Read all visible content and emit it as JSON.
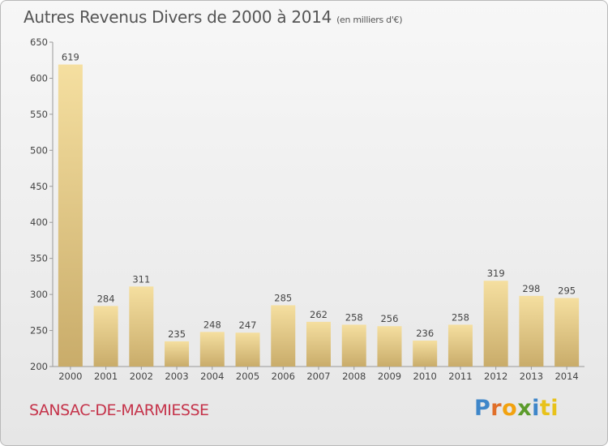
{
  "header": {
    "title": "Autres Revenus Divers de 2000 à 2014",
    "subtitle": "(en milliers d'€)"
  },
  "footer": {
    "commune": "SANSAC-DE-MARMIESSE",
    "logo_letters": [
      "P",
      "r",
      "o",
      "x",
      "i",
      "ti"
    ]
  },
  "colors": {
    "bar_light": "#f5dfa0",
    "bar_dark": "#c9ac6a",
    "commune": "#c5334a",
    "axis": "#999999"
  },
  "chart_data": {
    "type": "bar",
    "title": "Autres Revenus Divers de 2000 à 2014",
    "subtitle": "(en milliers d'€)",
    "xlabel": "",
    "ylabel": "",
    "categories": [
      "2000",
      "2001",
      "2002",
      "2003",
      "2004",
      "2005",
      "2006",
      "2007",
      "2008",
      "2009",
      "2010",
      "2011",
      "2012",
      "2013",
      "2014"
    ],
    "values": [
      619,
      284,
      311,
      235,
      248,
      247,
      285,
      262,
      258,
      256,
      236,
      258,
      319,
      298,
      295
    ],
    "ylim": [
      200,
      650
    ],
    "yticks": [
      200,
      250,
      300,
      350,
      400,
      450,
      500,
      550,
      600,
      650
    ],
    "grid": false,
    "data_labels": true
  }
}
